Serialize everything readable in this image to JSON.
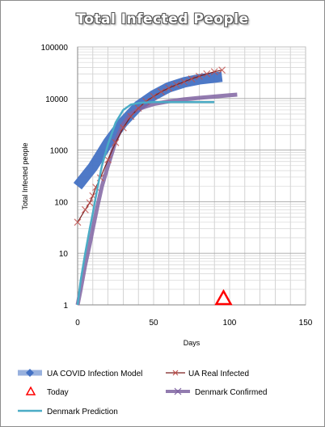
{
  "chart_data": {
    "type": "line",
    "title": "Total Infected People",
    "xlabel": "Days",
    "ylabel": "Total Infected people",
    "xlim": [
      0,
      150
    ],
    "xticks": [
      0,
      50,
      100,
      150
    ],
    "ylim": [
      1,
      100000
    ],
    "yscale": "log",
    "yticks": [
      1,
      10,
      100,
      1000,
      10000,
      100000
    ],
    "grid": true,
    "legend_position": "bottom",
    "series": [
      {
        "name": "UA COVID Infection Model",
        "color": "#4472c4",
        "style": "thick-band",
        "x": [
          0,
          10,
          20,
          30,
          40,
          50,
          60,
          70,
          80,
          90,
          95
        ],
        "y": [
          200,
          470,
          1400,
          3500,
          7200,
          11500,
          16500,
          20500,
          23500,
          25500,
          26500
        ]
      },
      {
        "name": "UA Real Infected",
        "color": "#c0504d",
        "style": "line-x-markers",
        "x": [
          0,
          5,
          8,
          10,
          12,
          15,
          20,
          25,
          30,
          35,
          40,
          45,
          50,
          55,
          60,
          65,
          70,
          75,
          80,
          85,
          90,
          95
        ],
        "y": [
          40,
          70,
          95,
          130,
          190,
          290,
          650,
          1400,
          2700,
          4500,
          6500,
          8800,
          11000,
          13500,
          16000,
          18500,
          21000,
          24000,
          27000,
          30000,
          33000,
          35500
        ]
      },
      {
        "name": "Today",
        "color": "#ff0000",
        "style": "triangle",
        "x": [
          96
        ],
        "y": [
          1
        ]
      },
      {
        "name": "Denmark Confirmed",
        "color": "#8064a2",
        "style": "thick-line",
        "x": [
          0,
          2,
          5,
          8,
          10,
          13,
          16,
          20,
          25,
          30,
          35,
          40,
          50,
          60,
          70,
          80,
          90,
          100,
          105
        ],
        "y": [
          1,
          2,
          6,
          15,
          30,
          80,
          200,
          500,
          1500,
          3200,
          5000,
          6300,
          7800,
          8800,
          9600,
          10300,
          10900,
          11600,
          11900
        ]
      },
      {
        "name": "Denmark Prediction",
        "color": "#4bacc6",
        "style": "line",
        "x": [
          0,
          2,
          5,
          8,
          10,
          13,
          16,
          20,
          25,
          30,
          35,
          40,
          50,
          60,
          70,
          80,
          90
        ],
        "y": [
          1,
          3,
          10,
          30,
          60,
          180,
          500,
          1300,
          3400,
          6000,
          7600,
          8200,
          8500,
          8500,
          8500,
          8500,
          8500
        ]
      }
    ]
  }
}
